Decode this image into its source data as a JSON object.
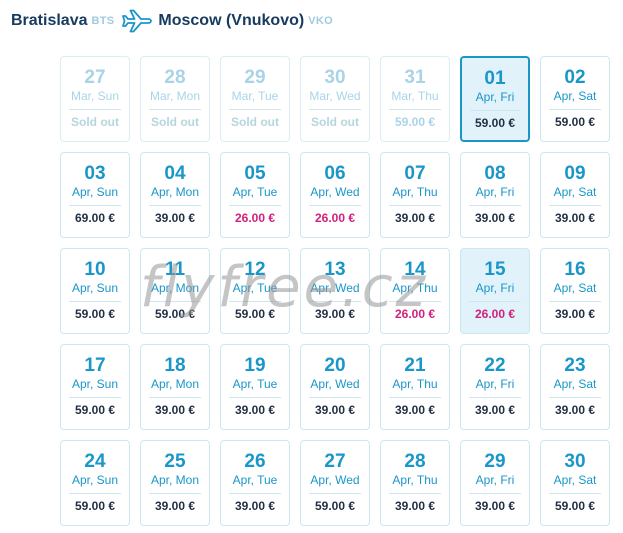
{
  "route": {
    "origin": "Bratislava",
    "origin_code": "BTS",
    "destination": "Moscow (Vnukovo)",
    "destination_code": "VKO",
    "icon": "airplane-icon"
  },
  "colors": {
    "accent": "#1a96c9",
    "low_price": "#d0217d",
    "selected_bg": "#e1f2fa"
  },
  "days": [
    {
      "day": "27",
      "sub": "Mar, Sun",
      "price": "Sold out",
      "state": "past soldout"
    },
    {
      "day": "28",
      "sub": "Mar, Mon",
      "price": "Sold out",
      "state": "past soldout"
    },
    {
      "day": "29",
      "sub": "Mar, Tue",
      "price": "Sold out",
      "state": "past soldout"
    },
    {
      "day": "30",
      "sub": "Mar, Wed",
      "price": "Sold out",
      "state": "past soldout"
    },
    {
      "day": "31",
      "sub": "Mar, Thu",
      "price": "59.00 €",
      "state": "past"
    },
    {
      "day": "01",
      "sub": "Apr, Fri",
      "price": "59.00 €",
      "state": "sel"
    },
    {
      "day": "02",
      "sub": "Apr, Sat",
      "price": "59.00 €",
      "state": ""
    },
    {
      "day": "03",
      "sub": "Apr, Sun",
      "price": "69.00 €",
      "state": ""
    },
    {
      "day": "04",
      "sub": "Apr, Mon",
      "price": "39.00 €",
      "state": ""
    },
    {
      "day": "05",
      "sub": "Apr, Tue",
      "price": "26.00 €",
      "state": "low"
    },
    {
      "day": "06",
      "sub": "Apr, Wed",
      "price": "26.00 €",
      "state": "low"
    },
    {
      "day": "07",
      "sub": "Apr, Thu",
      "price": "39.00 €",
      "state": ""
    },
    {
      "day": "08",
      "sub": "Apr, Fri",
      "price": "39.00 €",
      "state": ""
    },
    {
      "day": "09",
      "sub": "Apr, Sat",
      "price": "39.00 €",
      "state": ""
    },
    {
      "day": "10",
      "sub": "Apr, Sun",
      "price": "59.00 €",
      "state": ""
    },
    {
      "day": "11",
      "sub": "Apr, Mon",
      "price": "59.00 €",
      "state": ""
    },
    {
      "day": "12",
      "sub": "Apr, Tue",
      "price": "59.00 €",
      "state": ""
    },
    {
      "day": "13",
      "sub": "Apr, Wed",
      "price": "39.00 €",
      "state": ""
    },
    {
      "day": "14",
      "sub": "Apr, Thu",
      "price": "26.00 €",
      "state": "low"
    },
    {
      "day": "15",
      "sub": "Apr, Fri",
      "price": "26.00 €",
      "state": "low hl"
    },
    {
      "day": "16",
      "sub": "Apr, Sat",
      "price": "39.00 €",
      "state": ""
    },
    {
      "day": "17",
      "sub": "Apr, Sun",
      "price": "59.00 €",
      "state": ""
    },
    {
      "day": "18",
      "sub": "Apr, Mon",
      "price": "39.00 €",
      "state": ""
    },
    {
      "day": "19",
      "sub": "Apr, Tue",
      "price": "39.00 €",
      "state": ""
    },
    {
      "day": "20",
      "sub": "Apr, Wed",
      "price": "39.00 €",
      "state": ""
    },
    {
      "day": "21",
      "sub": "Apr, Thu",
      "price": "39.00 €",
      "state": ""
    },
    {
      "day": "22",
      "sub": "Apr, Fri",
      "price": "39.00 €",
      "state": ""
    },
    {
      "day": "23",
      "sub": "Apr, Sat",
      "price": "39.00 €",
      "state": ""
    },
    {
      "day": "24",
      "sub": "Apr, Sun",
      "price": "59.00 €",
      "state": ""
    },
    {
      "day": "25",
      "sub": "Apr, Mon",
      "price": "39.00 €",
      "state": ""
    },
    {
      "day": "26",
      "sub": "Apr, Tue",
      "price": "39.00 €",
      "state": ""
    },
    {
      "day": "27",
      "sub": "Apr, Wed",
      "price": "59.00 €",
      "state": ""
    },
    {
      "day": "28",
      "sub": "Apr, Thu",
      "price": "39.00 €",
      "state": ""
    },
    {
      "day": "29",
      "sub": "Apr, Fri",
      "price": "39.00 €",
      "state": ""
    },
    {
      "day": "30",
      "sub": "Apr, Sat",
      "price": "59.00 €",
      "state": ""
    }
  ],
  "watermark": "flyfree.cz"
}
